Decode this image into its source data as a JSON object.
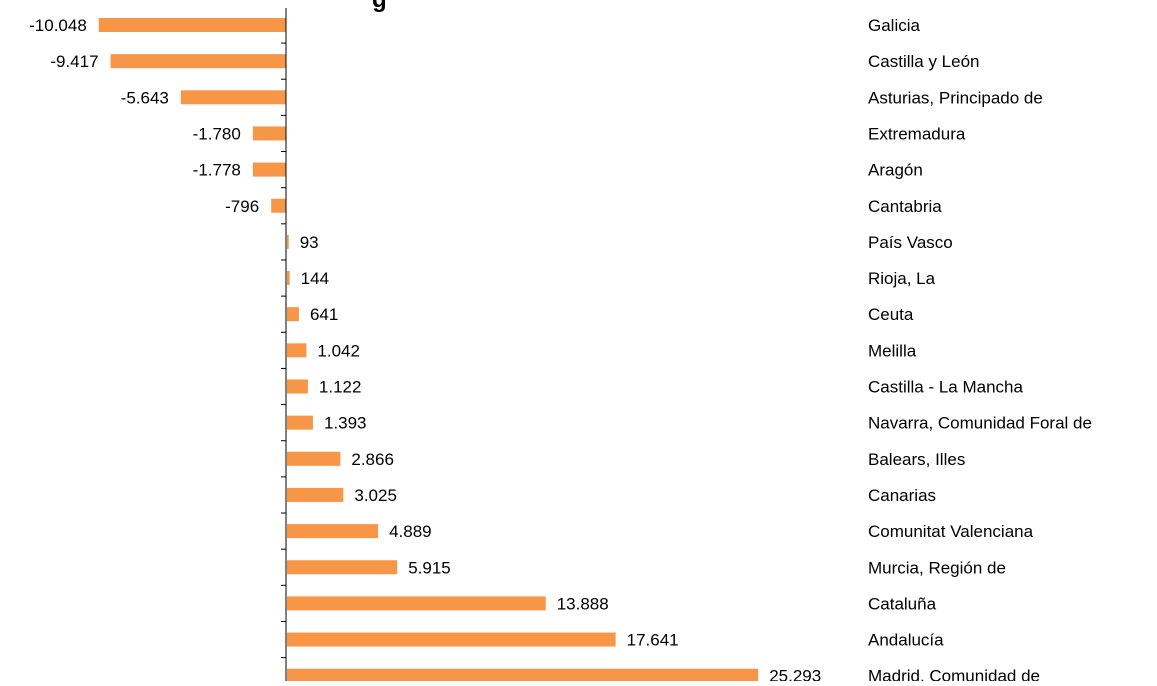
{
  "chart_data": {
    "type": "bar",
    "orientation": "horizontal",
    "title_partial": "g",
    "categories": [
      "Galicia",
      "Castilla y León",
      "Asturias, Principado de",
      "Extremadura",
      "Aragón",
      "Cantabria",
      "País Vasco",
      "Rioja, La",
      "Ceuta",
      "Melilla",
      "Castilla - La Mancha",
      "Navarra, Comunidad Foral de",
      "Balears, Illes",
      "Canarias",
      "Comunitat Valenciana",
      "Murcia, Región de",
      "Cataluña",
      "Andalucía",
      "Madrid, Comunidad de"
    ],
    "values": [
      -10048,
      -9417,
      -5643,
      -1780,
      -1778,
      -796,
      93,
      144,
      641,
      1042,
      1122,
      1393,
      2866,
      3025,
      4889,
      5915,
      13888,
      17641,
      25293
    ],
    "value_labels": [
      "-10.048",
      "-9.417",
      "-5.643",
      "-1.780",
      "-1.778",
      "-796",
      "93",
      "144",
      "641",
      "1.042",
      "1.122",
      "1.393",
      "2.866",
      "3.025",
      "4.889",
      "5.915",
      "13.888",
      "17.641",
      "25.293"
    ],
    "bar_color": "#F79646",
    "legend": "none",
    "grid": false
  }
}
